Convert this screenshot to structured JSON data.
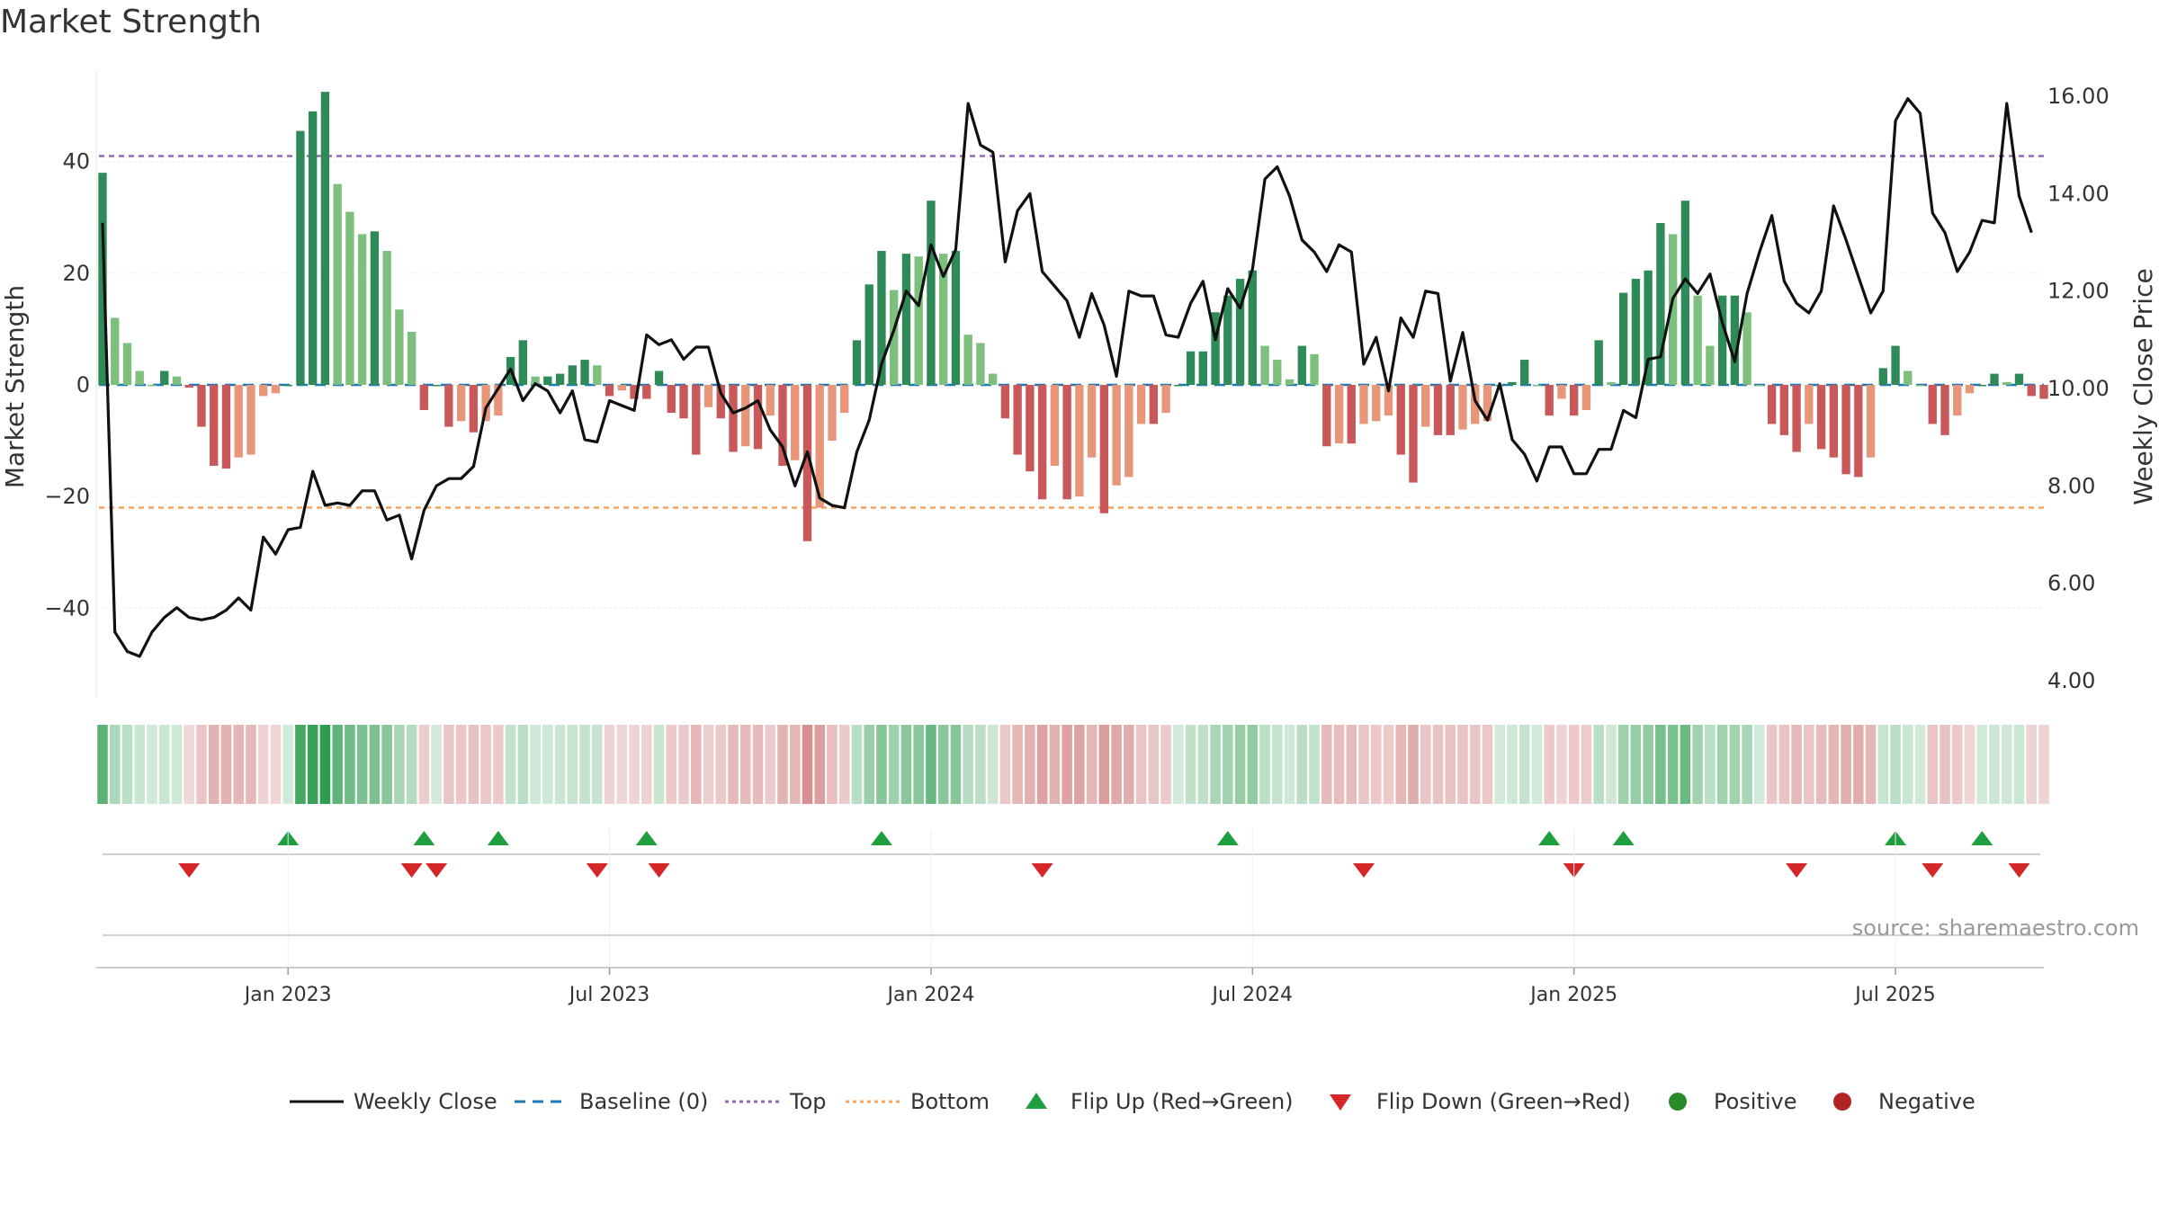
{
  "title": "Market Strength",
  "left_axis_label": "Market Strength",
  "right_axis_label": "Weekly Close Price",
  "source": "source: sharemaestro.com",
  "colors": {
    "dark_green": "#2e8b57",
    "light_green": "#7dbf7d",
    "dark_red": "#c8585a",
    "light_red": "#e8967a",
    "line": "#111111",
    "baseline": "#1f77b4",
    "top": "#9467bd",
    "bottom": "#f4a460",
    "flip_up": "#1e9e3e",
    "flip_down": "#d62728",
    "positive": "#2a8a2a",
    "negative": "#b22222"
  },
  "chart_data": {
    "type": "bar+line",
    "title": "Market Strength",
    "x_ticks": [
      "Jan 2023",
      "Jul 2023",
      "Jan 2024",
      "Jul 2024",
      "Jan 2025",
      "Jul 2025"
    ],
    "x_tick_index": [
      15,
      41,
      67,
      93,
      119,
      145
    ],
    "left_axis": {
      "label": "Market Strength",
      "ylim": [
        -56,
        56
      ],
      "ticks": [
        40,
        20,
        0,
        -20,
        -40
      ],
      "tick_labels": [
        "40",
        "20",
        "0",
        "−20",
        "−40"
      ]
    },
    "right_axis": {
      "label": "Weekly Close Price",
      "ylim": [
        3.5,
        16.4
      ],
      "ticks": [
        16,
        14,
        12,
        10,
        8,
        6,
        4
      ],
      "tick_labels": [
        "16.00",
        "14.00",
        "12.00",
        "10.00",
        "8.00",
        "6.00",
        "4.00"
      ]
    },
    "top_line": 41,
    "bottom_line": -22,
    "strength": [
      38,
      12,
      7.5,
      2.5,
      0,
      2.5,
      1.5,
      -0.5,
      -7.5,
      -14.5,
      -15,
      -13,
      -12.5,
      -2,
      -1.5,
      0,
      45.5,
      49,
      52.5,
      36,
      31,
      27,
      27.5,
      24,
      13.5,
      9.5,
      -4.5,
      0,
      -7.5,
      -6.5,
      -8.5,
      -6.5,
      -5.5,
      5,
      8,
      1.5,
      1.5,
      2,
      3.5,
      4.5,
      3.5,
      -2,
      -1,
      -2.5,
      -2.5,
      2.5,
      -5,
      -6,
      -12.5,
      -4,
      -6,
      -12,
      -11,
      -11.5,
      -5.5,
      -14.5,
      -13.5,
      -28,
      -22,
      -10,
      -5,
      8,
      18,
      24,
      17,
      23.5,
      23,
      33,
      23.5,
      24,
      9,
      7.5,
      2,
      -6,
      -12.5,
      -15.5,
      -20.5,
      -14.5,
      -20.5,
      -20,
      -13,
      -23,
      -18,
      -16.5,
      -7,
      -7,
      -5,
      0,
      6,
      6,
      13,
      16,
      19,
      20.5,
      7,
      4.5,
      1,
      7,
      5.5,
      -11,
      -10.5,
      -10.5,
      -7,
      -6.5,
      -5.5,
      -12.5,
      -17.5,
      -7.5,
      -9,
      -9,
      -8,
      -7,
      -6.5,
      0,
      0.5,
      4.5,
      0,
      -5.5,
      -2.5,
      -5.5,
      -4.5,
      8,
      0.5,
      16.5,
      19,
      20.5,
      29,
      27,
      33,
      16,
      7,
      16,
      16,
      13,
      0,
      -7,
      -9,
      -12,
      -7,
      -11.5,
      -13,
      -16,
      -16.5,
      -13,
      3,
      7,
      2.5,
      0,
      -7,
      -9,
      -5.5,
      -1.5,
      0,
      2,
      0.5,
      2,
      -2,
      -2.5
    ],
    "close": [
      13.4,
      5.0,
      4.6,
      4.5,
      5.0,
      5.3,
      5.5,
      5.3,
      5.25,
      5.3,
      5.45,
      5.7,
      5.45,
      6.95,
      6.6,
      7.1,
      7.15,
      8.3,
      7.6,
      7.65,
      7.6,
      7.9,
      7.9,
      7.3,
      7.4,
      6.5,
      7.5,
      8.0,
      8.15,
      8.15,
      8.4,
      9.6,
      10.0,
      10.4,
      9.75,
      10.1,
      9.95,
      9.5,
      9.95,
      8.95,
      8.9,
      9.75,
      9.65,
      9.55,
      11.1,
      10.9,
      11.0,
      10.6,
      10.85,
      10.85,
      9.9,
      9.5,
      9.6,
      9.75,
      9.15,
      8.8,
      8.0,
      8.7,
      7.75,
      7.6,
      7.55,
      8.7,
      9.35,
      10.5,
      11.2,
      12.0,
      11.7,
      12.95,
      12.3,
      12.85,
      15.85,
      15.0,
      14.85,
      12.6,
      13.65,
      14.0,
      12.4,
      12.1,
      11.8,
      11.05,
      11.95,
      11.3,
      10.25,
      12.0,
      11.9,
      11.9,
      11.1,
      11.05,
      11.75,
      12.2,
      11.0,
      12.05,
      11.65,
      12.45,
      14.3,
      14.55,
      13.95,
      13.05,
      12.8,
      12.4,
      12.95,
      12.8,
      10.5,
      11.05,
      9.95,
      11.45,
      11.05,
      12.0,
      11.95,
      10.15,
      11.15,
      9.75,
      9.35,
      10.1,
      8.95,
      8.65,
      8.1,
      8.8,
      8.8,
      8.25,
      8.25,
      8.75,
      8.75,
      9.55,
      9.4,
      10.6,
      10.65,
      11.85,
      12.25,
      11.95,
      12.35,
      11.35,
      10.55,
      11.95,
      12.8,
      13.55,
      12.2,
      11.75,
      11.55,
      12.0,
      13.75,
      13.05,
      12.3,
      11.55,
      12.0,
      15.5,
      15.95,
      15.65,
      13.6,
      13.2,
      12.4,
      12.8,
      13.45,
      13.4,
      15.85,
      13.95,
      13.2
    ],
    "flip_up_index": [
      15,
      26,
      32,
      44,
      63,
      91,
      117,
      123,
      145,
      152
    ],
    "flip_down_index": [
      7,
      25,
      27,
      40,
      45,
      76,
      102,
      119,
      137,
      148,
      155
    ],
    "legend": [
      "Weekly Close",
      "Baseline (0)",
      "Top",
      "Bottom",
      "Flip Up (Red→Green)",
      "Flip Down (Green→Red)",
      "Positive",
      "Negative"
    ]
  }
}
